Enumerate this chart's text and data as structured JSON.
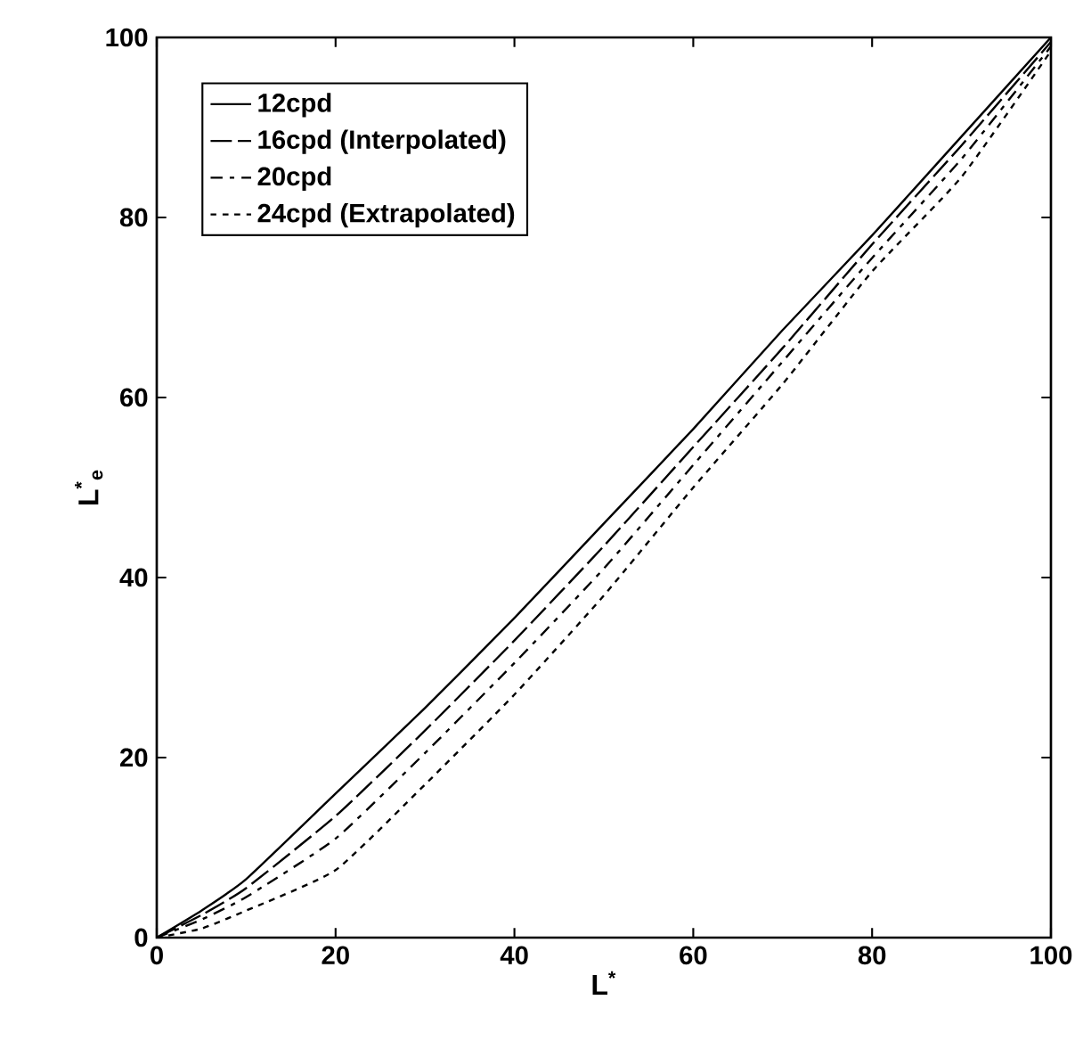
{
  "chart_data": {
    "type": "line",
    "xlabel": "L$^{*}$",
    "ylabel": "L$^{*}$$_{e}$",
    "x": [
      0,
      5,
      10,
      20,
      30,
      40,
      50,
      60,
      70,
      80,
      90,
      100
    ],
    "series": [
      {
        "name": "12cpd",
        "color": "#000000",
        "line_style": "solid",
        "values": [
          0,
          3,
          6.5,
          16,
          25.5,
          35.5,
          46,
          56.5,
          67.5,
          78,
          89,
          100
        ]
      },
      {
        "name": "16cpd (Interpolated)",
        "color": "#000000",
        "line_style": "dashed",
        "values": [
          0,
          2.5,
          5.5,
          13.5,
          23,
          33,
          43.5,
          54.5,
          65.5,
          77,
          88,
          99.5
        ]
      },
      {
        "name": "20cpd",
        "color": "#000000",
        "line_style": "dashed",
        "values": [
          0,
          2,
          4.5,
          11,
          20.5,
          30.5,
          41,
          52.5,
          64,
          75.5,
          86.5,
          99
        ]
      },
      {
        "name": "24cpd (Extrapolated)",
        "color": "#000000",
        "line_style": "dotted",
        "values": [
          0,
          1,
          3,
          7.5,
          17,
          27,
          38,
          50,
          61.5,
          74,
          84.5,
          98.5
        ]
      }
    ],
    "xlim": [
      0,
      100
    ],
    "ylim": [
      0,
      100
    ],
    "xticks": [
      0,
      20,
      40,
      60,
      80,
      100
    ],
    "yticks": [
      0,
      20,
      40,
      60,
      80,
      100
    ],
    "grid": false,
    "legend": "top left",
    "marker": "none"
  }
}
